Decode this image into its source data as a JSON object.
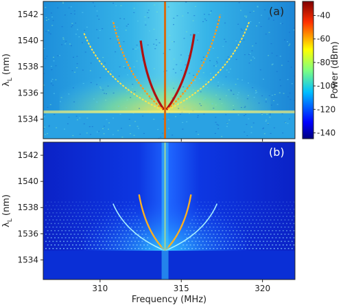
{
  "chart_data": [
    {
      "type": "heatmap",
      "panel_label": "(a)",
      "xlabel": "",
      "ylabel_main": "λ",
      "ylabel_sub": "L",
      "ylabel_unit": " (nm)",
      "xlim": [
        306.5,
        322
      ],
      "ylim": [
        1532.5,
        1543
      ],
      "x_ticks": [],
      "y_ticks": [
        "1534",
        "1536",
        "1538",
        "1540",
        "1542"
      ],
      "y_tick_values": [
        1534,
        1536,
        1538,
        1540,
        1542
      ],
      "colorbar": {
        "label": "Power (dBm)",
        "range": [
          -145,
          -28
        ],
        "ticks": [
          "-40",
          "-60",
          "-80",
          "-100",
          "-120",
          "-140"
        ],
        "tick_values": [
          -40,
          -60,
          -80,
          -100,
          -120,
          -140
        ],
        "colormap": "jet"
      },
      "features": {
        "center_line_freq_mhz": 314,
        "noise_floor_wavelength_nm": 1534.5,
        "fan_lines": [
          {
            "from": [
              314,
              1534.6
            ],
            "to": [
              312.5,
              1540.0
            ],
            "strength": "strong"
          },
          {
            "from": [
              314,
              1534.6
            ],
            "to": [
              315.8,
              1540.5
            ],
            "strength": "strong"
          },
          {
            "from": [
              314,
              1534.6
            ],
            "to": [
              310.8,
              1541.5
            ],
            "strength": "medium"
          },
          {
            "from": [
              314,
              1534.6
            ],
            "to": [
              317.4,
              1542.0
            ],
            "strength": "medium"
          },
          {
            "from": [
              314,
              1534.6
            ],
            "to": [
              309.0,
              1540.6
            ],
            "strength": "weak"
          },
          {
            "from": [
              314,
              1534.6
            ],
            "to": [
              319.2,
              1541.5
            ],
            "strength": "weak"
          }
        ]
      }
    },
    {
      "type": "heatmap",
      "panel_label": "(b)",
      "xlabel": "Frequency (MHz)",
      "ylabel_main": "λ",
      "ylabel_sub": "L",
      "ylabel_unit": " (nm)",
      "xlim": [
        306.5,
        322
      ],
      "ylim": [
        1532.5,
        1543
      ],
      "x_ticks": [
        "310",
        "315",
        "320"
      ],
      "x_tick_values": [
        310,
        315,
        320
      ],
      "y_ticks": [
        "1534",
        "1536",
        "1538",
        "1540",
        "1542"
      ],
      "y_tick_values": [
        1534,
        1536,
        1538,
        1540,
        1542
      ],
      "colormap": "jet",
      "features": {
        "center_line_freq_mhz": 314,
        "floor_wavelength_nm": 1534.7,
        "fan_lines": [
          {
            "from": [
              314,
              1534.7
            ],
            "to": [
              312.4,
              1539.0
            ],
            "strength": "strong"
          },
          {
            "from": [
              314,
              1534.7
            ],
            "to": [
              315.6,
              1539.0
            ],
            "strength": "strong"
          },
          {
            "from": [
              314,
              1534.7
            ],
            "to": [
              310.8,
              1538.3
            ],
            "strength": "medium"
          },
          {
            "from": [
              314,
              1534.7
            ],
            "to": [
              317.2,
              1538.3
            ],
            "strength": "medium"
          }
        ]
      }
    }
  ]
}
